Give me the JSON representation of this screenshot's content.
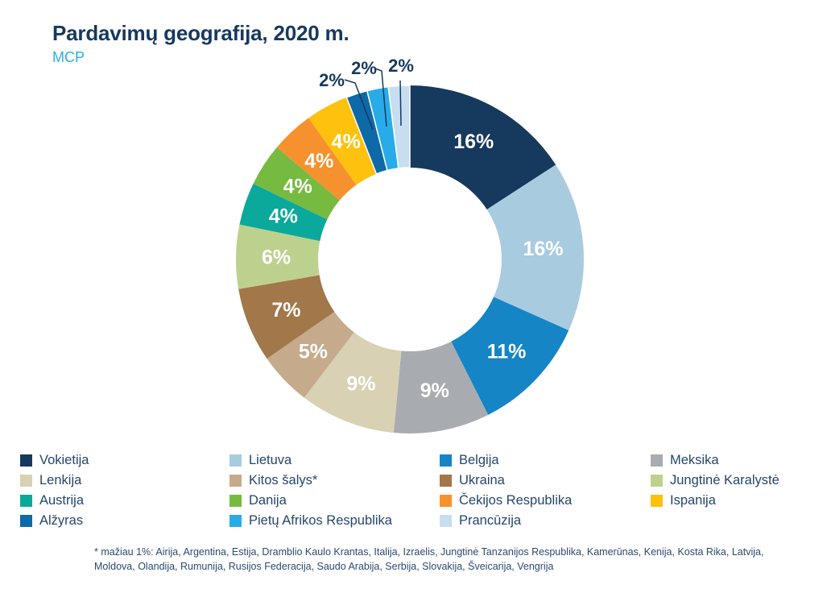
{
  "header": {
    "title": "Pardavimų geografija, 2020 m.",
    "subtitle": "MCP"
  },
  "colors": {
    "background": "#ffffff",
    "title_text": "#16395f",
    "subtitle_text": "#29afe8",
    "legend_text": "#24466c",
    "inside_label_text": "#ffffff",
    "external_label_text": "#16395f",
    "leader_line": "#16395f"
  },
  "chart_data": {
    "type": "pie",
    "variant": "donut",
    "title": "Pardavimų geografija, 2020 m.",
    "unit": "%",
    "label_format": "percent",
    "legend_position": "bottom",
    "start_angle_deg": 0,
    "direction": "clockwise",
    "segments": [
      {
        "label": "Vokietija",
        "value": 16,
        "display": "16%",
        "color": "#16395e"
      },
      {
        "label": "Lietuva",
        "value": 16,
        "display": "16%",
        "color": "#a8cbe0"
      },
      {
        "label": "Belgija",
        "value": 11,
        "display": "11%",
        "color": "#1585c5"
      },
      {
        "label": "Meksika",
        "value": 9,
        "display": "9%",
        "color": "#a8acb0"
      },
      {
        "label": "Lenkija",
        "value": 9,
        "display": "9%",
        "color": "#d8d1b3"
      },
      {
        "label": "Kitos šalys*",
        "value": 5,
        "display": "5%",
        "color": "#c5aa8c"
      },
      {
        "label": "Ukraina",
        "value": 7,
        "display": "7%",
        "color": "#a2774a"
      },
      {
        "label": "Jungtinė Karalystė",
        "value": 6,
        "display": "6%",
        "color": "#bdd18f"
      },
      {
        "label": "Austrija",
        "value": 4,
        "display": "4%",
        "color": "#0ba99b"
      },
      {
        "label": "Danija",
        "value": 4,
        "display": "4%",
        "color": "#77ba40"
      },
      {
        "label": "Čekijos Respublika",
        "value": 4,
        "display": "4%",
        "color": "#f6922d"
      },
      {
        "label": "Ispanija",
        "value": 4,
        "display": "4%",
        "color": "#fec10e"
      },
      {
        "label": "Alžyras",
        "value": 2,
        "display": "2%",
        "color": "#0e69a7"
      },
      {
        "label": "Pietų Afrikos Respublika",
        "value": 2,
        "display": "2%",
        "color": "#28ace9"
      },
      {
        "label": "Prancūzija",
        "value": 2,
        "display": "2%",
        "color": "#c6deef"
      }
    ]
  },
  "footnote": {
    "lines": [
      "* mažiau 1%: Airija, Argentina, Estija, Dramblio Kaulo Krantas, Italija, Izraelis, Jungtinė Tanzanijos Respublika, Kamerūnas, Kenija, Kosta Rika, Latvija,",
      "Moldova, Olandija, Rumunija, Rusijos Federacija, Saudo Arabija, Serbija, Slovakija, Šveicarija, Vengrija"
    ]
  }
}
